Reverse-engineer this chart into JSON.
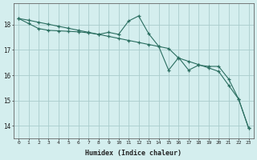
{
  "xlabel": "Humidex (Indice chaleur)",
  "ylabel": "",
  "bg_color": "#d4eeee",
  "grid_color": "#aacccc",
  "line_color": "#2a6e60",
  "xlim": [
    -0.5,
    23.5
  ],
  "ylim": [
    13.5,
    18.85
  ],
  "yticks": [
    14,
    15,
    16,
    17,
    18
  ],
  "xticks": [
    0,
    1,
    2,
    3,
    4,
    5,
    6,
    7,
    8,
    9,
    10,
    11,
    12,
    13,
    14,
    15,
    16,
    17,
    18,
    19,
    20,
    21,
    22,
    23
  ],
  "line1_x": [
    0,
    1,
    2,
    3,
    4,
    5,
    6,
    7,
    8,
    9,
    10,
    11,
    12,
    13,
    14,
    15,
    16,
    17,
    18,
    19,
    20,
    21,
    22,
    23
  ],
  "line1_y": [
    18.25,
    18.05,
    17.85,
    17.78,
    17.76,
    17.74,
    17.72,
    17.68,
    17.62,
    17.7,
    17.62,
    18.15,
    18.35,
    17.65,
    17.15,
    16.2,
    16.7,
    16.2,
    16.4,
    16.35,
    16.35,
    15.85,
    15.05,
    13.9
  ],
  "line2_x": [
    0,
    1,
    2,
    3,
    4,
    5,
    6,
    7,
    8,
    9,
    10,
    11,
    12,
    13,
    14,
    15,
    16,
    17,
    18,
    19,
    20,
    21,
    22,
    23
  ],
  "line2_y": [
    18.25,
    18.18,
    18.1,
    18.02,
    17.94,
    17.86,
    17.78,
    17.7,
    17.62,
    17.54,
    17.46,
    17.38,
    17.3,
    17.22,
    17.14,
    17.06,
    16.68,
    16.55,
    16.42,
    16.29,
    16.15,
    15.6,
    15.05,
    13.9
  ]
}
